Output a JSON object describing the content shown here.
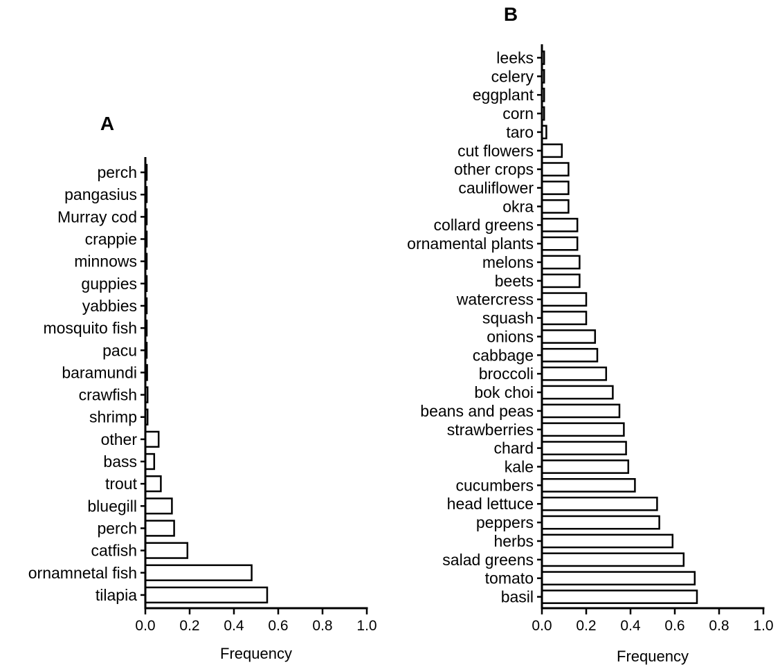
{
  "chart_data": [
    {
      "type": "bar",
      "orientation": "horizontal",
      "title": "A",
      "xlabel": "Frequency",
      "xlim": [
        0,
        1.0
      ],
      "xticks": [
        "0.0",
        "0.2",
        "0.4",
        "0.6",
        "0.8",
        "1.0"
      ],
      "categories": [
        "perch",
        "pangasius",
        "Murray cod",
        "crappie",
        "minnows",
        "guppies",
        "yabbies",
        "mosquito fish",
        "pacu",
        "baramundi",
        "crawfish",
        "shrimp",
        "other",
        "bass",
        "trout",
        "bluegill",
        "perch",
        "catfish",
        "ornamnetal fish",
        "tilapia"
      ],
      "values": [
        0.005,
        0.005,
        0.005,
        0.005,
        0.005,
        0.005,
        0.005,
        0.005,
        0.006,
        0.008,
        0.01,
        0.01,
        0.06,
        0.04,
        0.07,
        0.12,
        0.13,
        0.19,
        0.48,
        0.55
      ]
    },
    {
      "type": "bar",
      "orientation": "horizontal",
      "title": "B",
      "xlabel": "Frequency",
      "xlim": [
        0,
        1.0
      ],
      "xticks": [
        "0.0",
        "0.2",
        "0.4",
        "0.6",
        "0.8",
        "1.0"
      ],
      "categories": [
        "leeks",
        "celery",
        "eggplant",
        "corn",
        "taro",
        "cut flowers",
        "other crops",
        "cauliflower",
        "okra",
        "collard greens",
        "ornamental plants",
        "melons",
        "beets",
        "watercress",
        "squash",
        "onions",
        "cabbage",
        "broccoli",
        "bok choi",
        "beans and peas",
        "strawberries",
        "chard",
        "kale",
        "cucumbers",
        "head lettuce",
        "peppers",
        "herbs",
        "salad greens",
        "tomato",
        "basil"
      ],
      "values": [
        0.01,
        0.01,
        0.01,
        0.01,
        0.02,
        0.09,
        0.12,
        0.12,
        0.12,
        0.16,
        0.16,
        0.17,
        0.17,
        0.2,
        0.2,
        0.24,
        0.25,
        0.29,
        0.32,
        0.35,
        0.37,
        0.38,
        0.39,
        0.42,
        0.52,
        0.53,
        0.59,
        0.64,
        0.69,
        0.7
      ]
    }
  ]
}
